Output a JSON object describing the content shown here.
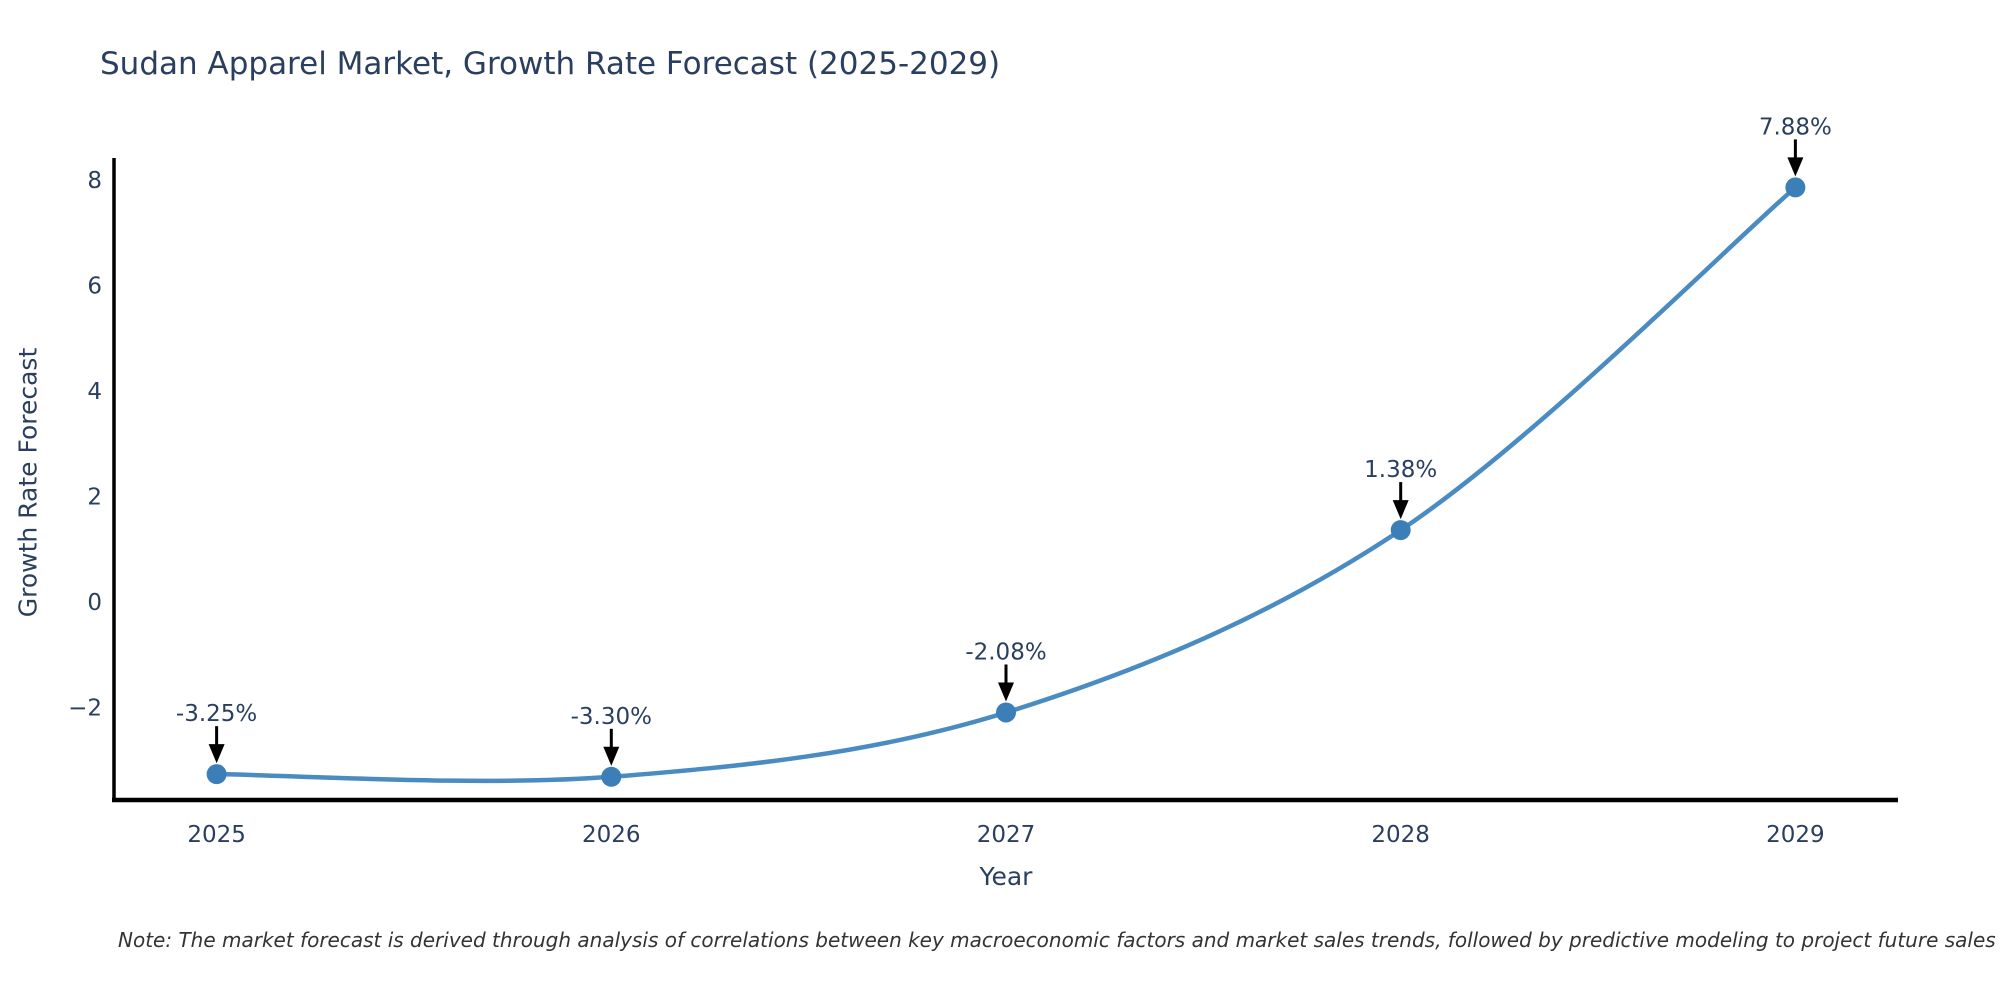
{
  "note": "Note: The market forecast is derived through analysis of correlations between key macroeconomic factors and market sales trends, followed by predictive modeling to project future sales",
  "chart_data": {
    "type": "line",
    "title": "Sudan Apparel Market, Growth Rate Forecast (2025-2029)",
    "xlabel": "Year",
    "ylabel": "Growth Rate Forecast",
    "x": [
      2025,
      2026,
      2027,
      2028,
      2029
    ],
    "y": [
      -3.25,
      -3.3,
      -2.08,
      1.38,
      7.88
    ],
    "point_labels": [
      "-3.25%",
      "-3.30%",
      "-2.08%",
      "1.38%",
      "7.88%"
    ],
    "xticks": [
      2025,
      2026,
      2027,
      2028,
      2029
    ],
    "yticks": [
      -2,
      0,
      2,
      4,
      6,
      8
    ],
    "xlim": [
      2024.74,
      2029.26
    ],
    "ylim": [
      -3.74,
      8.4
    ],
    "line_shape": "spline",
    "grid": false,
    "legend": "none",
    "colors": {
      "line": "#4a8bc2",
      "marker": "#3c7fb8",
      "text": "#2a3f5f",
      "axis": "#000000",
      "arrow": "#000000",
      "note_text": "#333333"
    }
  }
}
